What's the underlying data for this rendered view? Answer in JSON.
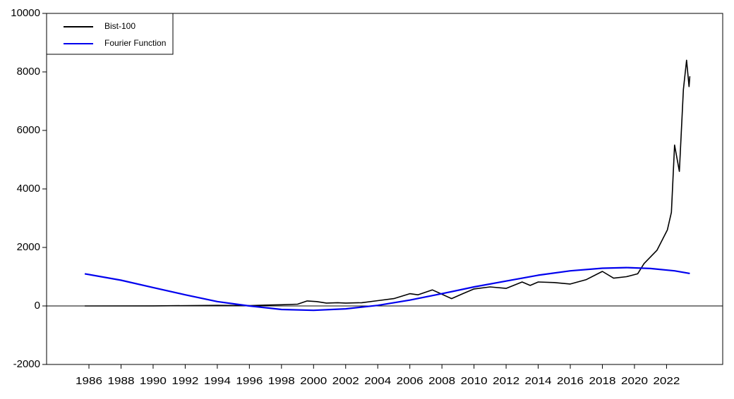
{
  "chart_data": {
    "type": "line",
    "xlim": [
      1983.36,
      2025.5
    ],
    "xticks": [
      1986,
      1988,
      1990,
      1992,
      1994,
      1996,
      1998,
      2000,
      2002,
      2004,
      2006,
      2008,
      2010,
      2012,
      2014,
      2016,
      2018,
      2020,
      2022
    ],
    "ylim": [
      -2000,
      10000
    ],
    "yticks": [
      -2000,
      0,
      2000,
      4000,
      6000,
      8000,
      10000
    ],
    "legend": "upper left",
    "series": [
      {
        "name": "Bist-100",
        "color": "#000000",
        "x": [
          1985.74,
          1990,
          1994,
          1996,
          1997,
          1998,
          1999,
          1999.6,
          2000.2,
          2000.8,
          2001.5,
          2002,
          2003,
          2004,
          2005,
          2006,
          2006.5,
          2007.4,
          2008,
          2008.6,
          2009.3,
          2010,
          2011,
          2012,
          2013,
          2013.5,
          2014,
          2015,
          2016,
          2017,
          2018,
          2018.7,
          2019.5,
          2020.2,
          2020.6,
          2021.4,
          2022.05,
          2022.3,
          2022.5,
          2022.8,
          2023.05,
          2023.25,
          2023.4,
          2023.45
        ],
        "values": [
          0,
          3,
          20,
          10,
          30,
          40,
          60,
          170,
          150,
          100,
          110,
          100,
          110,
          180,
          250,
          420,
          380,
          550,
          400,
          250,
          420,
          580,
          650,
          600,
          820,
          700,
          820,
          800,
          750,
          900,
          1180,
          950,
          1000,
          1100,
          1450,
          1900,
          2600,
          3200,
          5500,
          4600,
          7400,
          8400,
          7500,
          7850
        ]
      },
      {
        "name": "Fourier Function",
        "color": "#0000ee",
        "x": [
          1985.74,
          1988,
          1990,
          1992,
          1994,
          1996,
          1998,
          2000,
          2002,
          2004,
          2006,
          2008,
          2010,
          2012,
          2014,
          2016,
          2018,
          2019.5,
          2021,
          2022.5,
          2023.45
        ],
        "values": [
          1100,
          880,
          630,
          380,
          150,
          0,
          -120,
          -150,
          -100,
          20,
          200,
          420,
          650,
          850,
          1050,
          1200,
          1290,
          1310,
          1280,
          1200,
          1110
        ]
      }
    ]
  }
}
